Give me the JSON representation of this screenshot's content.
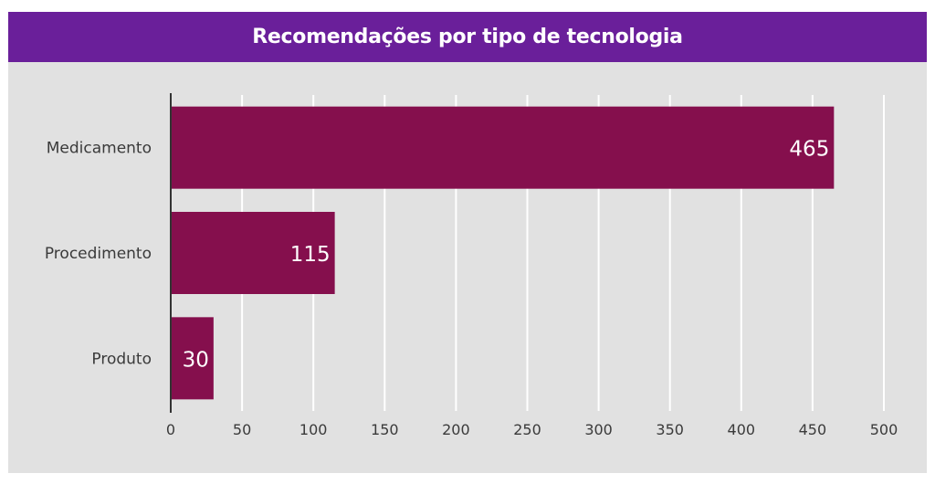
{
  "header": {
    "title": "Recomendações por tipo de tecnologia"
  },
  "colors": {
    "header_bg": "#6a1f9a",
    "panel_bg": "#e1e1e1",
    "bar": "#850f4d",
    "grid": "#ffffff",
    "axis": "#333333",
    "label": "#3a3a3a",
    "value_label": "#ffffff"
  },
  "chart_data": {
    "type": "bar",
    "orientation": "horizontal",
    "title": "Recomendações por tipo de tecnologia",
    "categories": [
      "Medicamento",
      "Procedimento",
      "Produto"
    ],
    "values": [
      465,
      115,
      30
    ],
    "data_labels": [
      "465",
      "115",
      "30"
    ],
    "xlim": [
      0,
      500
    ],
    "xticks": [
      0,
      50,
      100,
      150,
      200,
      250,
      300,
      350,
      400,
      450,
      500
    ],
    "xtick_labels": [
      "0",
      "50",
      "100",
      "150",
      "200",
      "250",
      "300",
      "350",
      "400",
      "450",
      "500"
    ],
    "grid": true,
    "legend": "none"
  }
}
